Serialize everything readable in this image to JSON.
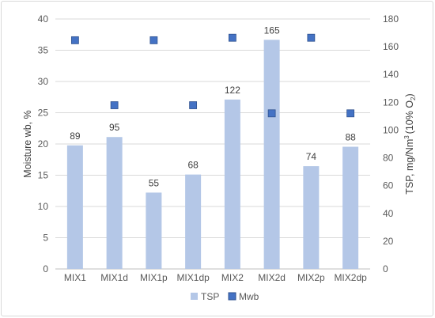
{
  "chart_data": {
    "type": "bar",
    "categories": [
      "MIX1",
      "MIX1d",
      "MIX1p",
      "MIX1dp",
      "MIX2",
      "MIX2d",
      "MIX2p",
      "MIX2dp"
    ],
    "series": [
      {
        "name": "TSP",
        "kind": "bar",
        "axis": "right",
        "color": "#b4c7e7",
        "values": [
          89,
          95,
          55,
          68,
          122,
          165,
          74,
          88
        ]
      },
      {
        "name": "Mwb",
        "kind": "marker",
        "axis": "left",
        "color": "#4472c4",
        "values": [
          36.6,
          26.2,
          36.6,
          26.2,
          37.0,
          24.9,
          37.0,
          24.9
        ]
      }
    ],
    "data_labels": [
      "89",
      "95",
      "55",
      "68",
      "122",
      "165",
      "74",
      "88"
    ],
    "y_left": {
      "label": "Moisture wb, %",
      "ticks": [
        "0",
        "5",
        "10",
        "15",
        "20",
        "25",
        "30",
        "35",
        "40"
      ],
      "range": [
        0,
        40
      ]
    },
    "y_right": {
      "label_main": "TSP, mg/Nm",
      "label_sup3": "3",
      "label_mid": "(10% O",
      "label_sub2": "2",
      "label_end": ")",
      "ticks": [
        "0",
        "20",
        "40",
        "60",
        "80",
        "100",
        "120",
        "140",
        "160",
        "180"
      ],
      "range": [
        0,
        180
      ]
    },
    "legend_position": "bottom",
    "grid": true
  }
}
